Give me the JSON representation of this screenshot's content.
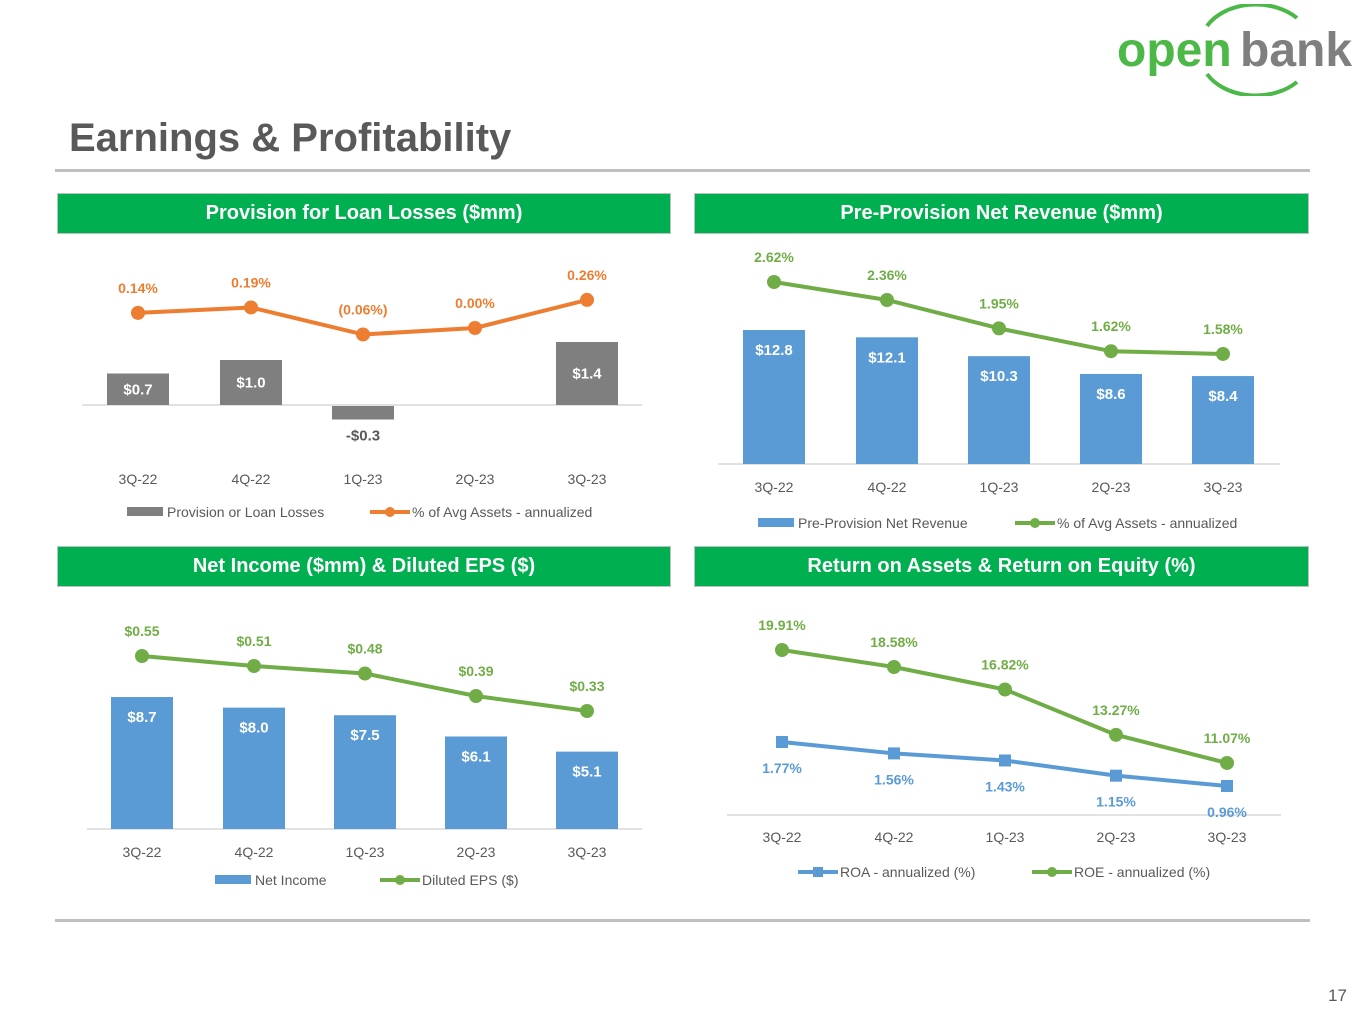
{
  "logo": {
    "text_open": "open",
    "text_bank": "bank",
    "green": "#4CB848",
    "gray": "#7F7F7F"
  },
  "title": "Earnings & Profitability",
  "page_number": "17",
  "colors": {
    "header_bg": "#00B050",
    "orange": "#ED7D31",
    "green": "#70AD47",
    "blue": "#5B9BD5",
    "gray_bar": "#7F7F7F",
    "label_gray": "#595959"
  },
  "chart_data": [
    {
      "type": "bar+line",
      "title": "Provision for Loan Losses ($mm)",
      "categories": [
        "3Q-22",
        "4Q-22",
        "1Q-23",
        "2Q-23",
        "3Q-23"
      ],
      "series": [
        {
          "name": "Provision or Loan Losses",
          "kind": "bar",
          "color": "#7F7F7F",
          "values": [
            0.7,
            1.0,
            -0.3,
            0.0,
            1.4
          ],
          "labels": [
            "$0.7",
            "$1.0",
            "-$0.3",
            "",
            "$1.4"
          ]
        },
        {
          "name": "% of Avg Assets - annualized",
          "kind": "line",
          "marker": "circle",
          "color": "#ED7D31",
          "values": [
            0.14,
            0.19,
            -0.06,
            0.0,
            0.26
          ],
          "labels": [
            "0.14%",
            "0.19%",
            "(0.06%)",
            "0.00%",
            "0.26%"
          ]
        }
      ]
    },
    {
      "type": "bar+line",
      "title": "Pre-Provision Net Revenue ($mm)",
      "categories": [
        "3Q-22",
        "4Q-22",
        "1Q-23",
        "2Q-23",
        "3Q-23"
      ],
      "series": [
        {
          "name": "Pre-Provision Net Revenue",
          "kind": "bar",
          "color": "#5B9BD5",
          "values": [
            12.8,
            12.1,
            10.3,
            8.6,
            8.4
          ],
          "labels": [
            "$12.8",
            "$12.1",
            "$10.3",
            "$8.6",
            "$8.4"
          ]
        },
        {
          "name": "% of Avg Assets - annualized",
          "kind": "line",
          "marker": "circle",
          "color": "#70AD47",
          "values": [
            2.62,
            2.36,
            1.95,
            1.62,
            1.58
          ],
          "labels": [
            "2.62%",
            "2.36%",
            "1.95%",
            "1.62%",
            "1.58%"
          ]
        }
      ]
    },
    {
      "type": "bar+line",
      "title": "Net Income ($mm) & Diluted EPS ($)",
      "categories": [
        "3Q-22",
        "4Q-22",
        "1Q-23",
        "2Q-23",
        "3Q-23"
      ],
      "series": [
        {
          "name": "Net Income",
          "kind": "bar",
          "color": "#5B9BD5",
          "values": [
            8.7,
            8.0,
            7.5,
            6.1,
            5.1
          ],
          "labels": [
            "$8.7",
            "$8.0",
            "$7.5",
            "$6.1",
            "$5.1"
          ]
        },
        {
          "name": "Diluted EPS ($)",
          "kind": "line",
          "marker": "circle",
          "color": "#70AD47",
          "values": [
            0.55,
            0.51,
            0.48,
            0.39,
            0.33
          ],
          "labels": [
            "$0.55",
            "$0.51",
            "$0.48",
            "$0.39",
            "$0.33"
          ]
        }
      ]
    },
    {
      "type": "line",
      "title": "Return on Assets & Return on Equity (%)",
      "categories": [
        "3Q-22",
        "4Q-22",
        "1Q-23",
        "2Q-23",
        "3Q-23"
      ],
      "series": [
        {
          "name": "ROA - annualized (%)",
          "kind": "line",
          "marker": "square",
          "color": "#5B9BD5",
          "values": [
            1.77,
            1.56,
            1.43,
            1.15,
            0.96
          ],
          "labels": [
            "1.77%",
            "1.56%",
            "1.43%",
            "1.15%",
            "0.96%"
          ]
        },
        {
          "name": "ROE - annualized (%)",
          "kind": "line",
          "marker": "circle",
          "color": "#70AD47",
          "values": [
            19.91,
            18.58,
            16.82,
            13.27,
            11.07
          ],
          "labels": [
            "19.91%",
            "18.58%",
            "16.82%",
            "13.27%",
            "11.07%"
          ]
        }
      ]
    }
  ]
}
